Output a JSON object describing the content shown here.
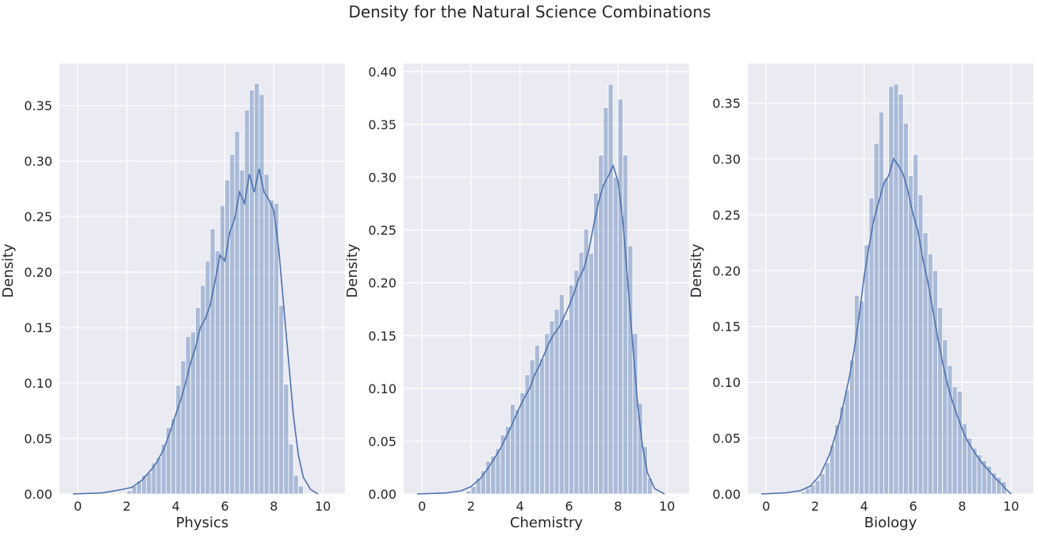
{
  "figure": {
    "title": "Density for the Natural Science Combinations"
  },
  "style": {
    "panel_bg": "#eaeaf2",
    "grid": "#ffffff",
    "bar_fill": "#4c72b0",
    "bar_alpha": 0.4,
    "line": "#4c72b0"
  },
  "chart_data": [
    {
      "type": "bar",
      "xlabel": "Physics",
      "ylabel": "Density",
      "xlim": [
        -0.75,
        10.9
      ],
      "ylim": [
        0,
        0.388
      ],
      "xticks": [
        0,
        2,
        4,
        6,
        8,
        10
      ],
      "yticks": [
        0.0,
        0.05,
        0.1,
        0.15,
        0.2,
        0.25,
        0.3,
        0.35
      ],
      "ytick_labels": [
        "0.00",
        "0.05",
        "0.10",
        "0.15",
        "0.20",
        "0.25",
        "0.30",
        "0.35"
      ],
      "grid": true,
      "bin_width": 0.2,
      "histogram": [
        {
          "x": 2.1,
          "y": 0.003
        },
        {
          "x": 2.3,
          "y": 0.007
        },
        {
          "x": 2.5,
          "y": 0.012
        },
        {
          "x": 2.7,
          "y": 0.017
        },
        {
          "x": 2.9,
          "y": 0.019
        },
        {
          "x": 3.1,
          "y": 0.028
        },
        {
          "x": 3.3,
          "y": 0.033
        },
        {
          "x": 3.5,
          "y": 0.045
        },
        {
          "x": 3.7,
          "y": 0.06
        },
        {
          "x": 3.9,
          "y": 0.068
        },
        {
          "x": 4.1,
          "y": 0.098
        },
        {
          "x": 4.3,
          "y": 0.12
        },
        {
          "x": 4.5,
          "y": 0.142
        },
        {
          "x": 4.7,
          "y": 0.146
        },
        {
          "x": 4.9,
          "y": 0.168
        },
        {
          "x": 5.1,
          "y": 0.188
        },
        {
          "x": 5.3,
          "y": 0.21
        },
        {
          "x": 5.5,
          "y": 0.239
        },
        {
          "x": 5.7,
          "y": 0.219
        },
        {
          "x": 5.9,
          "y": 0.26
        },
        {
          "x": 6.1,
          "y": 0.283
        },
        {
          "x": 6.3,
          "y": 0.306
        },
        {
          "x": 6.5,
          "y": 0.327
        },
        {
          "x": 6.7,
          "y": 0.292
        },
        {
          "x": 6.9,
          "y": 0.346
        },
        {
          "x": 7.1,
          "y": 0.364
        },
        {
          "x": 7.3,
          "y": 0.37
        },
        {
          "x": 7.5,
          "y": 0.36
        },
        {
          "x": 7.7,
          "y": 0.288
        },
        {
          "x": 7.9,
          "y": 0.265
        },
        {
          "x": 8.1,
          "y": 0.262
        },
        {
          "x": 8.3,
          "y": 0.17
        },
        {
          "x": 8.5,
          "y": 0.099
        },
        {
          "x": 8.7,
          "y": 0.045
        },
        {
          "x": 8.9,
          "y": 0.017
        },
        {
          "x": 9.1,
          "y": 0.007
        }
      ],
      "kde": [
        {
          "x": -0.2,
          "y": 0.0
        },
        {
          "x": 1.0,
          "y": 0.001
        },
        {
          "x": 1.8,
          "y": 0.004
        },
        {
          "x": 2.2,
          "y": 0.006
        },
        {
          "x": 2.6,
          "y": 0.012
        },
        {
          "x": 3.0,
          "y": 0.022
        },
        {
          "x": 3.2,
          "y": 0.028
        },
        {
          "x": 3.5,
          "y": 0.04
        },
        {
          "x": 3.8,
          "y": 0.058
        },
        {
          "x": 4.0,
          "y": 0.072
        },
        {
          "x": 4.2,
          "y": 0.085
        },
        {
          "x": 4.4,
          "y": 0.1
        },
        {
          "x": 4.6,
          "y": 0.118
        },
        {
          "x": 4.8,
          "y": 0.132
        },
        {
          "x": 5.0,
          "y": 0.15
        },
        {
          "x": 5.2,
          "y": 0.158
        },
        {
          "x": 5.4,
          "y": 0.17
        },
        {
          "x": 5.6,
          "y": 0.192
        },
        {
          "x": 5.8,
          "y": 0.215
        },
        {
          "x": 6.0,
          "y": 0.21
        },
        {
          "x": 6.2,
          "y": 0.236
        },
        {
          "x": 6.4,
          "y": 0.248
        },
        {
          "x": 6.6,
          "y": 0.272
        },
        {
          "x": 6.8,
          "y": 0.262
        },
        {
          "x": 7.0,
          "y": 0.288
        },
        {
          "x": 7.2,
          "y": 0.272
        },
        {
          "x": 7.4,
          "y": 0.293
        },
        {
          "x": 7.6,
          "y": 0.272
        },
        {
          "x": 7.8,
          "y": 0.265
        },
        {
          "x": 8.0,
          "y": 0.255
        },
        {
          "x": 8.2,
          "y": 0.22
        },
        {
          "x": 8.4,
          "y": 0.17
        },
        {
          "x": 8.6,
          "y": 0.12
        },
        {
          "x": 8.8,
          "y": 0.07
        },
        {
          "x": 9.0,
          "y": 0.035
        },
        {
          "x": 9.2,
          "y": 0.015
        },
        {
          "x": 9.5,
          "y": 0.004
        },
        {
          "x": 9.8,
          "y": 0.0
        }
      ]
    },
    {
      "type": "bar",
      "xlabel": "Chemistry",
      "ylabel": "Density",
      "xlim": [
        -0.75,
        10.9
      ],
      "ylim": [
        0,
        0.4078
      ],
      "xticks": [
        0,
        2,
        4,
        6,
        8,
        10
      ],
      "yticks": [
        0.0,
        0.05,
        0.1,
        0.15,
        0.2,
        0.25,
        0.3,
        0.35,
        0.4
      ],
      "ytick_labels": [
        "0.00",
        "0.05",
        "0.10",
        "0.15",
        "0.20",
        "0.25",
        "0.30",
        "0.35",
        "0.40"
      ],
      "grid": true,
      "bin_width": 0.2,
      "histogram": [
        {
          "x": 1.9,
          "y": 0.003
        },
        {
          "x": 2.1,
          "y": 0.007
        },
        {
          "x": 2.3,
          "y": 0.015
        },
        {
          "x": 2.5,
          "y": 0.022
        },
        {
          "x": 2.7,
          "y": 0.031
        },
        {
          "x": 2.9,
          "y": 0.036
        },
        {
          "x": 3.1,
          "y": 0.043
        },
        {
          "x": 3.3,
          "y": 0.056
        },
        {
          "x": 3.5,
          "y": 0.064
        },
        {
          "x": 3.7,
          "y": 0.085
        },
        {
          "x": 3.9,
          "y": 0.08
        },
        {
          "x": 4.1,
          "y": 0.096
        },
        {
          "x": 4.3,
          "y": 0.113
        },
        {
          "x": 4.5,
          "y": 0.127
        },
        {
          "x": 4.7,
          "y": 0.141
        },
        {
          "x": 4.9,
          "y": 0.128
        },
        {
          "x": 5.1,
          "y": 0.152
        },
        {
          "x": 5.3,
          "y": 0.164
        },
        {
          "x": 5.5,
          "y": 0.175
        },
        {
          "x": 5.7,
          "y": 0.189
        },
        {
          "x": 5.9,
          "y": 0.165
        },
        {
          "x": 6.1,
          "y": 0.198
        },
        {
          "x": 6.3,
          "y": 0.212
        },
        {
          "x": 6.5,
          "y": 0.229
        },
        {
          "x": 6.7,
          "y": 0.251
        },
        {
          "x": 6.9,
          "y": 0.228
        },
        {
          "x": 7.1,
          "y": 0.285
        },
        {
          "x": 7.3,
          "y": 0.321
        },
        {
          "x": 7.5,
          "y": 0.366
        },
        {
          "x": 7.7,
          "y": 0.388
        },
        {
          "x": 7.9,
          "y": 0.3
        },
        {
          "x": 8.1,
          "y": 0.374
        },
        {
          "x": 8.3,
          "y": 0.321
        },
        {
          "x": 8.5,
          "y": 0.235
        },
        {
          "x": 8.7,
          "y": 0.152
        },
        {
          "x": 8.9,
          "y": 0.086
        },
        {
          "x": 9.1,
          "y": 0.045
        },
        {
          "x": 9.3,
          "y": 0.015
        }
      ],
      "kde": [
        {
          "x": -0.2,
          "y": 0.0
        },
        {
          "x": 1.0,
          "y": 0.001
        },
        {
          "x": 1.6,
          "y": 0.003
        },
        {
          "x": 2.0,
          "y": 0.007
        },
        {
          "x": 2.4,
          "y": 0.015
        },
        {
          "x": 2.8,
          "y": 0.028
        },
        {
          "x": 3.2,
          "y": 0.043
        },
        {
          "x": 3.6,
          "y": 0.062
        },
        {
          "x": 4.0,
          "y": 0.083
        },
        {
          "x": 4.2,
          "y": 0.092
        },
        {
          "x": 4.4,
          "y": 0.1
        },
        {
          "x": 4.6,
          "y": 0.113
        },
        {
          "x": 4.8,
          "y": 0.122
        },
        {
          "x": 5.0,
          "y": 0.133
        },
        {
          "x": 5.2,
          "y": 0.144
        },
        {
          "x": 5.4,
          "y": 0.152
        },
        {
          "x": 5.6,
          "y": 0.158
        },
        {
          "x": 5.8,
          "y": 0.168
        },
        {
          "x": 6.0,
          "y": 0.178
        },
        {
          "x": 6.2,
          "y": 0.19
        },
        {
          "x": 6.4,
          "y": 0.204
        },
        {
          "x": 6.6,
          "y": 0.213
        },
        {
          "x": 6.8,
          "y": 0.23
        },
        {
          "x": 7.0,
          "y": 0.254
        },
        {
          "x": 7.2,
          "y": 0.276
        },
        {
          "x": 7.4,
          "y": 0.292
        },
        {
          "x": 7.6,
          "y": 0.301
        },
        {
          "x": 7.8,
          "y": 0.311
        },
        {
          "x": 8.0,
          "y": 0.296
        },
        {
          "x": 8.2,
          "y": 0.258
        },
        {
          "x": 8.4,
          "y": 0.2
        },
        {
          "x": 8.6,
          "y": 0.142
        },
        {
          "x": 8.8,
          "y": 0.085
        },
        {
          "x": 9.0,
          "y": 0.045
        },
        {
          "x": 9.2,
          "y": 0.02
        },
        {
          "x": 9.5,
          "y": 0.005
        },
        {
          "x": 9.9,
          "y": 0.0
        }
      ]
    },
    {
      "type": "bar",
      "xlabel": "Biology",
      "ylabel": "Density",
      "xlim": [
        -0.75,
        10.9
      ],
      "ylim": [
        0,
        0.3855
      ],
      "xticks": [
        0,
        2,
        4,
        6,
        8,
        10
      ],
      "yticks": [
        0.0,
        0.05,
        0.1,
        0.15,
        0.2,
        0.25,
        0.3,
        0.35
      ],
      "ytick_labels": [
        "0.00",
        "0.05",
        "0.10",
        "0.15",
        "0.20",
        "0.25",
        "0.30",
        "0.35"
      ],
      "grid": true,
      "bin_width": 0.2,
      "histogram": [
        {
          "x": 1.5,
          "y": 0.002
        },
        {
          "x": 1.7,
          "y": 0.005
        },
        {
          "x": 1.9,
          "y": 0.008
        },
        {
          "x": 2.1,
          "y": 0.012
        },
        {
          "x": 2.3,
          "y": 0.018
        },
        {
          "x": 2.5,
          "y": 0.028
        },
        {
          "x": 2.7,
          "y": 0.044
        },
        {
          "x": 2.9,
          "y": 0.062
        },
        {
          "x": 3.1,
          "y": 0.078
        },
        {
          "x": 3.3,
          "y": 0.093
        },
        {
          "x": 3.5,
          "y": 0.12
        },
        {
          "x": 3.7,
          "y": 0.178
        },
        {
          "x": 3.9,
          "y": 0.173
        },
        {
          "x": 4.1,
          "y": 0.223
        },
        {
          "x": 4.3,
          "y": 0.265
        },
        {
          "x": 4.5,
          "y": 0.314
        },
        {
          "x": 4.7,
          "y": 0.342
        },
        {
          "x": 4.9,
          "y": 0.283
        },
        {
          "x": 5.1,
          "y": 0.365
        },
        {
          "x": 5.3,
          "y": 0.367
        },
        {
          "x": 5.5,
          "y": 0.358
        },
        {
          "x": 5.7,
          "y": 0.332
        },
        {
          "x": 5.9,
          "y": 0.285
        },
        {
          "x": 6.1,
          "y": 0.304
        },
        {
          "x": 6.3,
          "y": 0.268
        },
        {
          "x": 6.5,
          "y": 0.234
        },
        {
          "x": 6.7,
          "y": 0.215
        },
        {
          "x": 6.9,
          "y": 0.2
        },
        {
          "x": 7.1,
          "y": 0.167
        },
        {
          "x": 7.3,
          "y": 0.138
        },
        {
          "x": 7.5,
          "y": 0.115
        },
        {
          "x": 7.7,
          "y": 0.096
        },
        {
          "x": 7.9,
          "y": 0.092
        },
        {
          "x": 8.1,
          "y": 0.063
        },
        {
          "x": 8.3,
          "y": 0.05
        },
        {
          "x": 8.5,
          "y": 0.041
        },
        {
          "x": 8.7,
          "y": 0.035
        },
        {
          "x": 8.9,
          "y": 0.03
        },
        {
          "x": 9.1,
          "y": 0.025
        },
        {
          "x": 9.3,
          "y": 0.019
        },
        {
          "x": 9.5,
          "y": 0.015
        },
        {
          "x": 9.7,
          "y": 0.011
        }
      ],
      "kde": [
        {
          "x": -0.2,
          "y": 0.0
        },
        {
          "x": 0.8,
          "y": 0.001
        },
        {
          "x": 1.4,
          "y": 0.003
        },
        {
          "x": 1.8,
          "y": 0.007
        },
        {
          "x": 2.2,
          "y": 0.017
        },
        {
          "x": 2.6,
          "y": 0.036
        },
        {
          "x": 3.0,
          "y": 0.065
        },
        {
          "x": 3.4,
          "y": 0.105
        },
        {
          "x": 3.6,
          "y": 0.13
        },
        {
          "x": 3.8,
          "y": 0.16
        },
        {
          "x": 4.0,
          "y": 0.195
        },
        {
          "x": 4.2,
          "y": 0.222
        },
        {
          "x": 4.4,
          "y": 0.246
        },
        {
          "x": 4.6,
          "y": 0.262
        },
        {
          "x": 4.8,
          "y": 0.278
        },
        {
          "x": 5.0,
          "y": 0.285
        },
        {
          "x": 5.2,
          "y": 0.3
        },
        {
          "x": 5.4,
          "y": 0.294
        },
        {
          "x": 5.6,
          "y": 0.286
        },
        {
          "x": 5.8,
          "y": 0.27
        },
        {
          "x": 6.0,
          "y": 0.25
        },
        {
          "x": 6.2,
          "y": 0.235
        },
        {
          "x": 6.4,
          "y": 0.21
        },
        {
          "x": 6.6,
          "y": 0.19
        },
        {
          "x": 6.8,
          "y": 0.165
        },
        {
          "x": 7.0,
          "y": 0.14
        },
        {
          "x": 7.2,
          "y": 0.118
        },
        {
          "x": 7.4,
          "y": 0.098
        },
        {
          "x": 7.6,
          "y": 0.083
        },
        {
          "x": 7.8,
          "y": 0.07
        },
        {
          "x": 8.0,
          "y": 0.058
        },
        {
          "x": 8.2,
          "y": 0.048
        },
        {
          "x": 8.4,
          "y": 0.041
        },
        {
          "x": 8.6,
          "y": 0.034
        },
        {
          "x": 8.8,
          "y": 0.028
        },
        {
          "x": 9.0,
          "y": 0.023
        },
        {
          "x": 9.2,
          "y": 0.018
        },
        {
          "x": 9.4,
          "y": 0.013
        },
        {
          "x": 9.6,
          "y": 0.009
        },
        {
          "x": 9.8,
          "y": 0.004
        },
        {
          "x": 10.0,
          "y": 0.0
        }
      ]
    }
  ]
}
